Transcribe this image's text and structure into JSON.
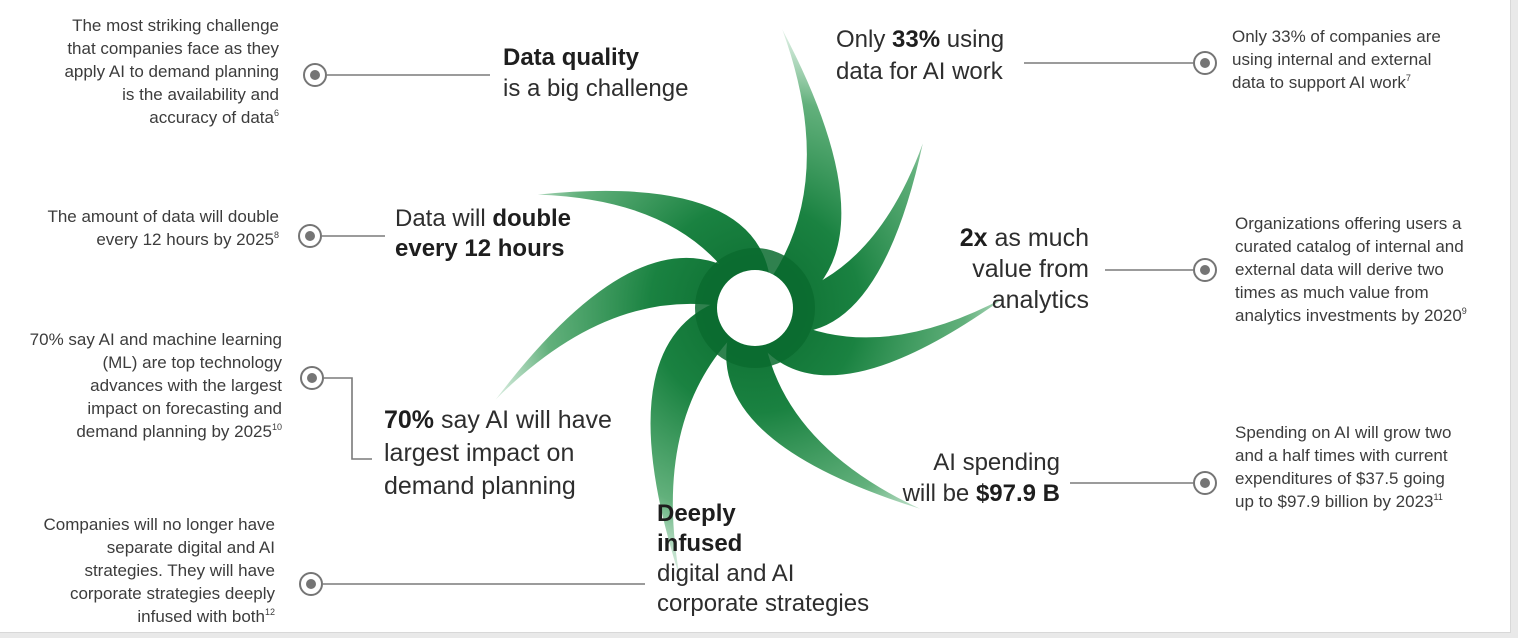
{
  "colors": {
    "green_dark": "#0b6b2f",
    "green_mid": "#2e9650",
    "connector": "#7a7a7a"
  },
  "facts": [
    {
      "id": "data-quality",
      "note_lines": [
        "The most striking challenge",
        "that companies face as they",
        "apply AI to demand planning",
        "is the availability and",
        "accuracy of data"
      ],
      "note_ref": "6",
      "label_bold": "Data quality",
      "label_rest": "is a big challenge"
    },
    {
      "id": "data-double",
      "note_lines": [
        "The amount of data will double",
        "every 12 hours by 2025"
      ],
      "note_ref": "8",
      "label_pre": "Data will ",
      "label_bold1": "double",
      "label_bold2": "every 12 hours"
    },
    {
      "id": "ai-ml",
      "note_lines": [
        "70% say AI and machine learning",
        "(ML) are top technology",
        "advances with the largest",
        "impact on forecasting and",
        "demand planning by 2025"
      ],
      "note_ref": "10",
      "label_bold": "70%",
      "label_line1_rest": " say AI will have",
      "label_line2": "largest impact on",
      "label_line3": "demand planning"
    },
    {
      "id": "deeply-infused",
      "note_lines": [
        "Companies will no longer have",
        "separate digital and AI",
        "strategies. They will have",
        "corporate strategies deeply",
        "infused with both"
      ],
      "note_ref": "12",
      "label_bold1": "Deeply",
      "label_bold2": "infused",
      "label_line3": "digital and AI",
      "label_line4": "corporate strategies"
    },
    {
      "id": "only-33",
      "note_lines": [
        "Only 33% of companies are",
        "using internal and external",
        "data to support AI work"
      ],
      "note_ref": "7",
      "label_pre": "Only ",
      "label_bold": "33%",
      "label_post": " using",
      "label_line2": "data for AI work"
    },
    {
      "id": "two-x",
      "note_lines": [
        "Organizations offering users a",
        "curated catalog of internal and",
        "external data will derive two",
        "times as much value from",
        "analytics investments by 2020"
      ],
      "note_ref": "9",
      "label_bold": "2x",
      "label_line1_rest": " as much",
      "label_line2": "value from",
      "label_line3": "analytics"
    },
    {
      "id": "ai-spending",
      "note_lines": [
        "Spending on AI will grow two",
        "and a half times with current",
        "expenditures of $37.5 going",
        "up to $97.9 billion by 2023"
      ],
      "note_ref": "11",
      "label_line1": "AI spending",
      "label_pre2": "will be ",
      "label_bold": "$97.9 B"
    }
  ]
}
